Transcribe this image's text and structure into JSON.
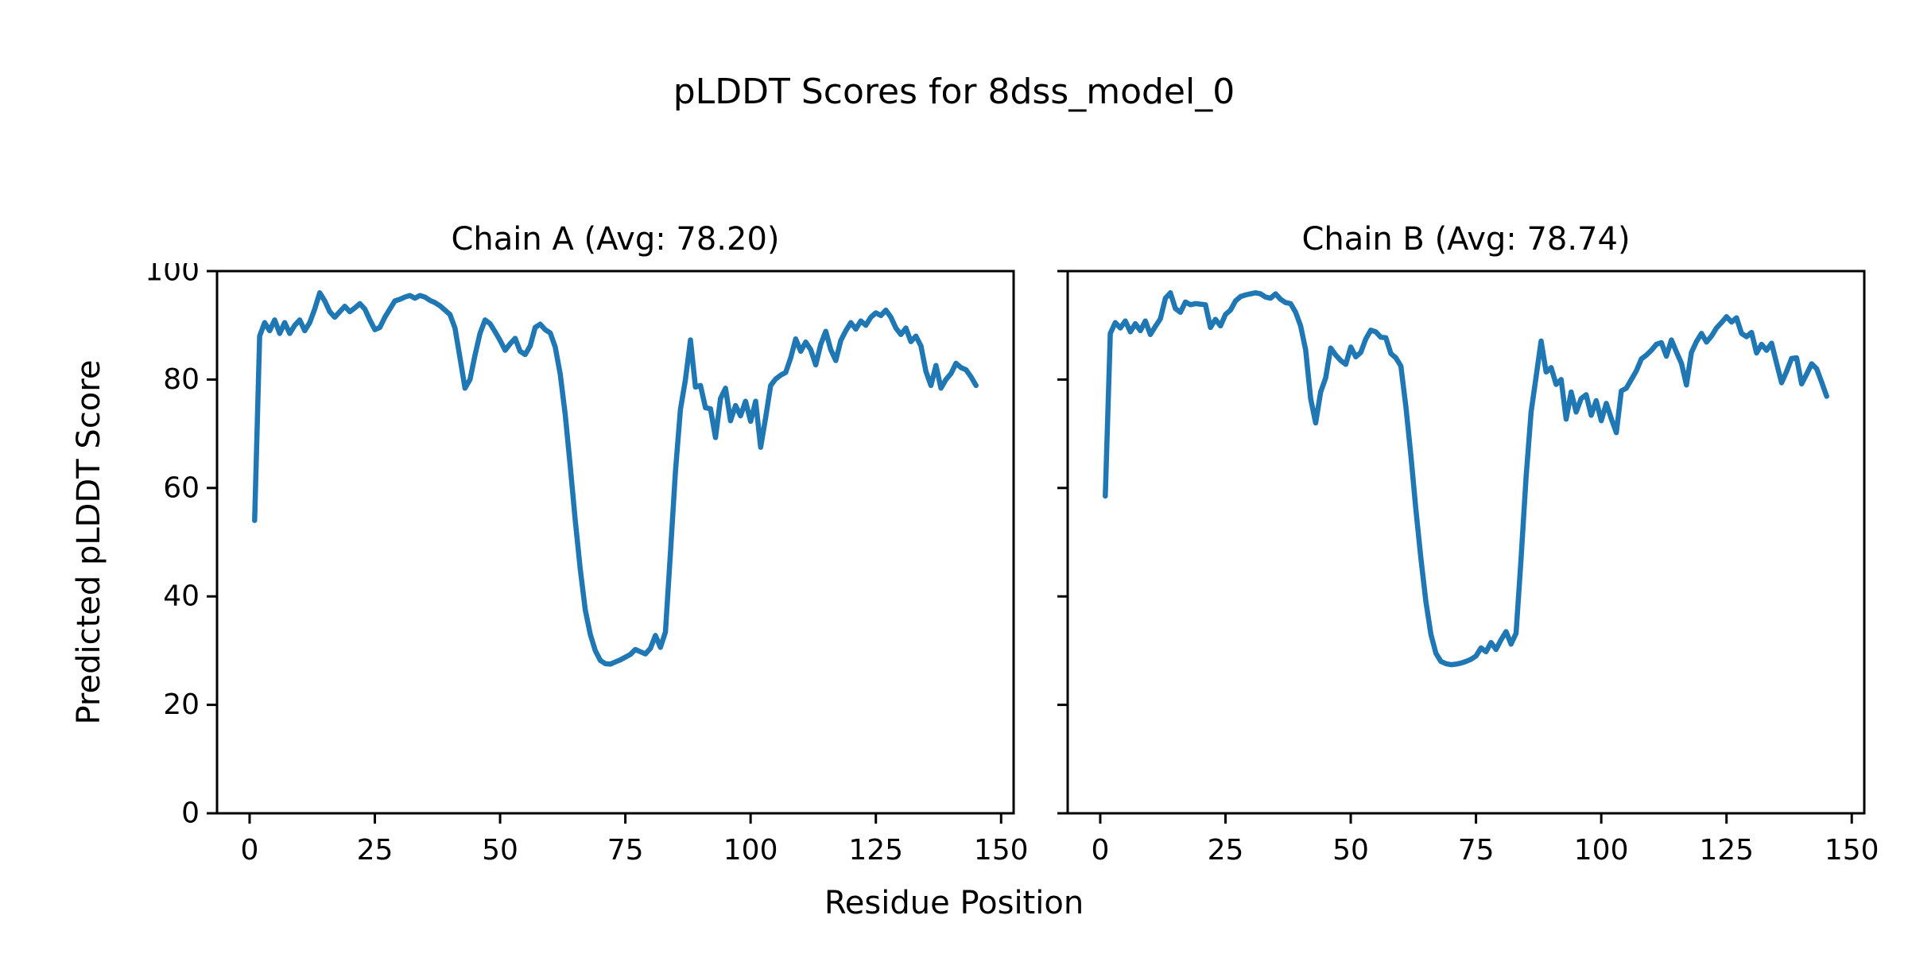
{
  "figure": {
    "title": "pLDDT Scores for 8dss_model_0",
    "xlabel": "Residue Position",
    "ylabel": "Predicted pLDDT Score",
    "background_color": "#ffffff",
    "line_color": "#1f77b4",
    "axes_color": "#000000"
  },
  "chart_data": [
    {
      "type": "line",
      "title": "Chain A (Avg: 78.20)",
      "chain": "A",
      "average": 78.2,
      "xlabel": "Residue Position",
      "ylabel": "Predicted pLDDT Score",
      "xlim": [
        -6.5,
        152.5
      ],
      "ylim": [
        0,
        100
      ],
      "xticks": [
        0,
        25,
        50,
        75,
        100,
        125,
        150
      ],
      "yticks": [
        0,
        20,
        40,
        60,
        80,
        100
      ],
      "show_ytick_labels": true,
      "grid": false,
      "legend": "none",
      "series": [
        {
          "name": "Chain A pLDDT",
          "x_start": 1,
          "x_step": 1,
          "values": [
            54,
            88,
            90.5,
            89,
            91,
            88.5,
            90.5,
            88.5,
            90,
            91,
            89,
            90.5,
            93,
            96,
            94.5,
            92.5,
            91.5,
            92.5,
            93.5,
            92.5,
            93.2,
            94,
            93,
            91,
            89.2,
            89.6,
            91.5,
            93,
            94.5,
            94.8,
            95.2,
            95.5,
            95,
            95.5,
            95.2,
            94.6,
            94.2,
            93.6,
            92.8,
            92,
            89.5,
            84,
            78.4,
            80,
            84.5,
            88.5,
            91,
            90.3,
            88.8,
            87.2,
            85.4,
            86.6,
            87.6,
            85.2,
            84.6,
            86.2,
            89.6,
            90.2,
            89.2,
            88.6,
            86,
            81,
            73.5,
            64,
            54,
            45,
            37.5,
            33,
            30,
            28.2,
            27.6,
            27.5,
            27.9,
            28.3,
            28.8,
            29.3,
            30.2,
            29.8,
            29.4,
            30.4,
            32.8,
            30.6,
            33.4,
            48,
            63,
            74.5,
            80,
            87.3,
            78.6,
            78.9,
            74.8,
            74.6,
            69.3,
            76.5,
            78.4,
            72.4,
            75.2,
            73.3,
            76,
            72.3,
            76,
            67.5,
            73,
            78.9,
            80.1,
            80.8,
            81.3,
            84,
            87.5,
            85.2,
            86.9,
            85.5,
            82.7,
            86.5,
            88.9,
            85.5,
            83.5,
            87.2,
            89,
            90.5,
            89.3,
            90.8,
            90,
            91.5,
            92.3,
            91.8,
            92.8,
            91.5,
            89.5,
            88.3,
            89.5,
            87,
            88,
            86.2,
            81.5,
            78.9,
            82.6,
            78.4,
            80,
            81.1,
            83,
            82.2,
            81.8,
            80.5,
            78.9
          ]
        }
      ]
    },
    {
      "type": "line",
      "title": "Chain B (Avg: 78.74)",
      "chain": "B",
      "average": 78.74,
      "xlabel": "Residue Position",
      "ylabel": "Predicted pLDDT Score",
      "xlim": [
        -6.5,
        152.5
      ],
      "ylim": [
        0,
        100
      ],
      "xticks": [
        0,
        25,
        50,
        75,
        100,
        125,
        150
      ],
      "yticks": [
        0,
        20,
        40,
        60,
        80,
        100
      ],
      "show_ytick_labels": false,
      "grid": false,
      "legend": "none",
      "series": [
        {
          "name": "Chain B pLDDT",
          "x_start": 1,
          "x_step": 1,
          "values": [
            58.5,
            88.5,
            90.5,
            89.5,
            90.8,
            88.8,
            90.3,
            89,
            90.8,
            88.3,
            89.8,
            91.2,
            95,
            96,
            93.1,
            92.4,
            94.3,
            93.8,
            94,
            93.9,
            93.8,
            89.6,
            91.1,
            89.9,
            92,
            92.8,
            94.5,
            95.3,
            95.6,
            95.8,
            96,
            95.8,
            95.2,
            95,
            95.8,
            94.8,
            94.2,
            94,
            92.4,
            89.9,
            85.5,
            76.5,
            72,
            77.7,
            80.3,
            85.8,
            84.5,
            83.5,
            82.8,
            86,
            84.2,
            85,
            87.5,
            89.1,
            88.8,
            87.8,
            87.7,
            84.8,
            84,
            82.5,
            75,
            66,
            56,
            47,
            39,
            33,
            29.5,
            28,
            27.6,
            27.4,
            27.5,
            27.7,
            28,
            28.4,
            29,
            30.5,
            29.8,
            31.5,
            30.2,
            32,
            33.5,
            31.2,
            33.2,
            47,
            62,
            74,
            80.5,
            87.1,
            81.4,
            82.2,
            79.1,
            80,
            72.7,
            77.7,
            74,
            76.5,
            77.2,
            73.4,
            76.1,
            72.4,
            75.6,
            72.8,
            70.2,
            77.9,
            78.4,
            80,
            81.6,
            83.8,
            84.5,
            85.4,
            86.5,
            86.8,
            84.3,
            87.3,
            85.1,
            83,
            79,
            85,
            87,
            88.5,
            86.9,
            88,
            89.5,
            90.5,
            91.6,
            90.6,
            91.4,
            88.5,
            87.9,
            88.7,
            84.9,
            86.5,
            85.4,
            86.7,
            83,
            79.4,
            81.5,
            83.9,
            84,
            79.2,
            81,
            82.9,
            82,
            79.5,
            76.9
          ]
        }
      ]
    }
  ]
}
